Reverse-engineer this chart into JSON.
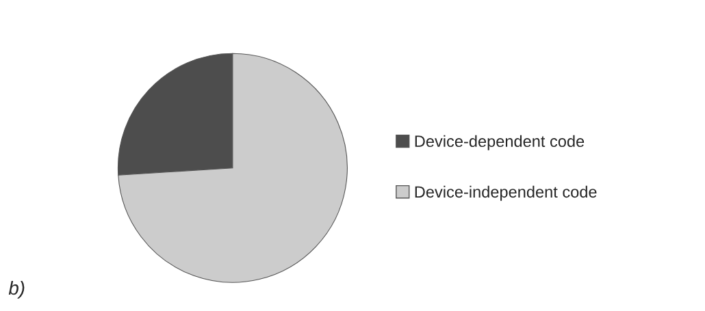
{
  "chart_data": {
    "type": "pie",
    "categories": [
      "Device-dependent code",
      "Device-independent code"
    ],
    "values": [
      26,
      74
    ],
    "colors": [
      "#4d4d4d",
      "#cccccc"
    ],
    "legend": "right",
    "annotations": [
      "b)"
    ]
  }
}
